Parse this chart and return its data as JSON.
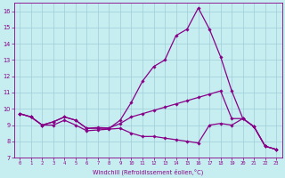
{
  "xlabel": "Windchill (Refroidissement éolien,°C)",
  "xlim": [
    -0.5,
    23.5
  ],
  "ylim": [
    7,
    16.5
  ],
  "yticks": [
    7,
    8,
    9,
    10,
    11,
    12,
    13,
    14,
    15,
    16
  ],
  "xticks": [
    0,
    1,
    2,
    3,
    4,
    5,
    6,
    7,
    8,
    9,
    10,
    11,
    12,
    13,
    14,
    15,
    16,
    17,
    18,
    19,
    20,
    21,
    22,
    23
  ],
  "background_color": "#c6eef0",
  "grid_color": "#9eccd8",
  "line_color": "#880088",
  "line1_y": [
    9.7,
    9.5,
    9.0,
    9.2,
    9.5,
    9.3,
    8.8,
    8.8,
    8.8,
    9.3,
    10.4,
    11.7,
    12.6,
    13.0,
    14.5,
    14.9,
    16.2,
    14.9,
    13.2,
    11.1,
    9.4,
    8.9,
    7.7,
    7.5
  ],
  "line2_y": [
    9.7,
    9.5,
    9.0,
    9.2,
    9.5,
    9.3,
    8.8,
    8.85,
    8.82,
    9.1,
    9.5,
    9.7,
    9.9,
    10.1,
    10.3,
    10.5,
    10.7,
    10.9,
    11.1,
    9.4,
    9.4,
    8.9,
    7.7,
    7.5
  ],
  "line3_y": [
    9.7,
    9.5,
    9.0,
    9.0,
    9.3,
    9.0,
    8.65,
    8.7,
    8.75,
    8.8,
    8.5,
    8.3,
    8.3,
    8.2,
    8.1,
    8.0,
    7.9,
    9.0,
    9.1,
    9.0,
    9.4,
    8.9,
    7.7,
    7.5
  ]
}
